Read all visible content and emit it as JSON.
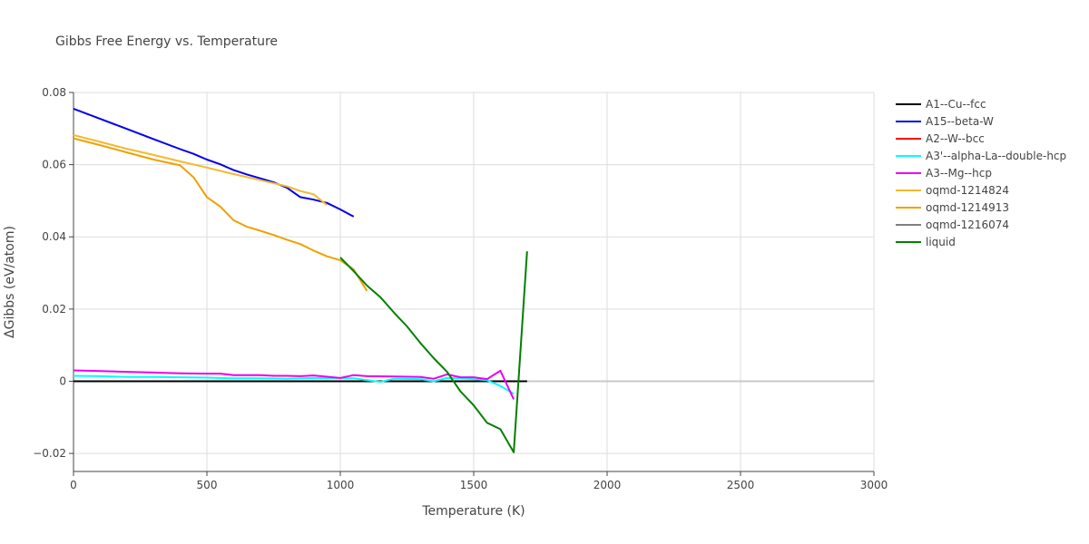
{
  "chart_data": {
    "type": "line",
    "title": "Gibbs Free Energy vs. Temperature",
    "xlabel": "Temperature (K)",
    "ylabel": "ΔGibbs (eV/atom)",
    "xlim": [
      0,
      3000
    ],
    "ylim": [
      -0.025,
      0.08
    ],
    "x_ticks": [
      0,
      500,
      1000,
      1500,
      2000,
      2500,
      3000
    ],
    "x_tick_labels": [
      "0",
      "500",
      "1000",
      "1500",
      "2000",
      "2500",
      "3000"
    ],
    "y_ticks": [
      -0.02,
      0,
      0.02,
      0.04,
      0.06,
      0.08
    ],
    "y_tick_labels": [
      "−0.02",
      "0",
      "0.02",
      "0.04",
      "0.06",
      "0.08"
    ],
    "grid": true,
    "legend_position": "right",
    "series": [
      {
        "name": "A1--Cu--fcc",
        "color": "#000000",
        "x": [
          0,
          500,
          1000,
          1500,
          1700
        ],
        "y": [
          0,
          0,
          0,
          0,
          0
        ]
      },
      {
        "name": "A15--beta-W",
        "color": "#0000ee",
        "x": [
          0,
          100,
          200,
          300,
          400,
          450,
          500,
          550,
          600,
          650,
          700,
          750,
          800,
          850,
          900,
          950,
          1000,
          1050
        ],
        "y": [
          0.0755,
          0.0727,
          0.0699,
          0.0671,
          0.0643,
          0.063,
          0.0614,
          0.0601,
          0.0585,
          0.0573,
          0.0562,
          0.0551,
          0.0536,
          0.051,
          0.0503,
          0.0494,
          0.0476,
          0.0456
        ]
      },
      {
        "name": "A2--W--bcc",
        "color": "#ff0000",
        "x": [],
        "y": []
      },
      {
        "name": "A3'--alpha-La--double-hcp",
        "color": "#00ffff",
        "x": [
          0,
          100,
          200,
          300,
          400,
          500,
          600,
          700,
          800,
          900,
          1000,
          1050,
          1100,
          1150,
          1200,
          1300,
          1350,
          1400,
          1450,
          1500,
          1550,
          1600,
          1650
        ],
        "y": [
          0.0015,
          0.0014,
          0.0012,
          0.0012,
          0.0011,
          0.001,
          0.0008,
          0.0008,
          0.0007,
          0.0009,
          0.0008,
          0.0008,
          0.0003,
          -0.0002,
          0.0007,
          0.0006,
          0.0,
          0.0009,
          0.0008,
          0.0006,
          0.0003,
          -0.0013,
          -0.0035
        ]
      },
      {
        "name": "A3--Mg--hcp",
        "color": "#ee00ee",
        "x": [
          0,
          100,
          200,
          300,
          400,
          500,
          550,
          600,
          700,
          750,
          800,
          850,
          900,
          1000,
          1050,
          1100,
          1200,
          1300,
          1350,
          1400,
          1450,
          1500,
          1550,
          1600,
          1650
        ],
        "y": [
          0.003,
          0.0028,
          0.0026,
          0.0024,
          0.0022,
          0.0021,
          0.0021,
          0.0017,
          0.0017,
          0.0015,
          0.0015,
          0.0014,
          0.0016,
          0.0009,
          0.0017,
          0.0014,
          0.0013,
          0.0012,
          0.0007,
          0.0019,
          0.0011,
          0.0011,
          0.0006,
          0.0029,
          -0.005
        ]
      },
      {
        "name": "oqmd-1214824",
        "color": "#f5b82e",
        "x": [
          0,
          100,
          200,
          300,
          400,
          500,
          600,
          700,
          800,
          850,
          900,
          950
        ],
        "y": [
          0.0682,
          0.0663,
          0.0644,
          0.0627,
          0.0609,
          0.0592,
          0.0574,
          0.0557,
          0.054,
          0.0527,
          0.0518,
          0.0488
        ]
      },
      {
        "name": "oqmd-1214913",
        "color": "#f0a000",
        "x": [
          0,
          100,
          200,
          300,
          400,
          450,
          500,
          550,
          600,
          650,
          700,
          750,
          800,
          850,
          900,
          950,
          1000,
          1050,
          1100
        ],
        "y": [
          0.0673,
          0.0654,
          0.0634,
          0.0614,
          0.0598,
          0.0565,
          0.051,
          0.0484,
          0.0446,
          0.0428,
          0.0417,
          0.0405,
          0.0392,
          0.038,
          0.0362,
          0.0346,
          0.0335,
          0.031,
          0.025
        ]
      },
      {
        "name": "oqmd-1216074",
        "color": "#808080",
        "x": [],
        "y": []
      },
      {
        "name": "liquid",
        "color": "#008000",
        "x": [
          1000,
          1050,
          1100,
          1150,
          1200,
          1250,
          1300,
          1350,
          1400,
          1450,
          1500,
          1550,
          1600,
          1650,
          1700
        ],
        "y": [
          0.0343,
          0.0305,
          0.0265,
          0.0233,
          0.0191,
          0.0152,
          0.0106,
          0.0064,
          0.0026,
          -0.0028,
          -0.0067,
          -0.0115,
          -0.0133,
          -0.0197,
          0.036
        ]
      }
    ]
  }
}
